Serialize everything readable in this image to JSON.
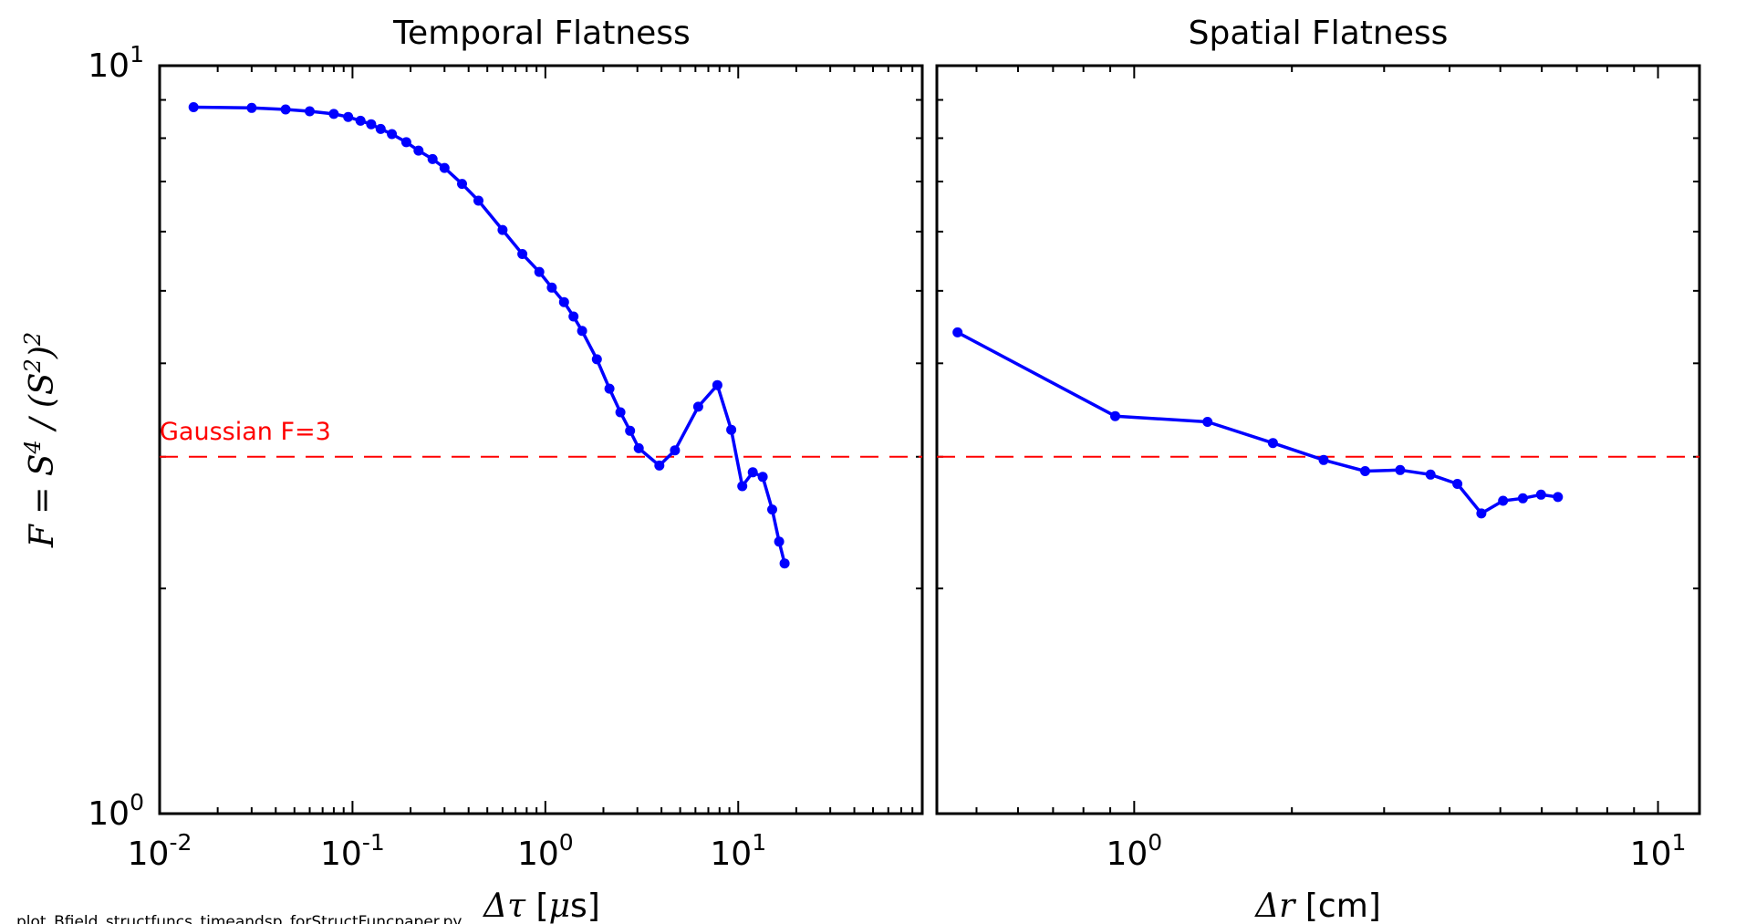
{
  "footer_filename": "plot_Bfield_structfuncs_timeandsp_forStructFuncpaper.py",
  "colors": {
    "series": "#0000ff",
    "reference": "#ff0000",
    "axes": "#000000"
  },
  "y_axis": {
    "label": "F = S^4 / (S^2)^2",
    "scale": "log",
    "range": [
      1,
      10
    ],
    "tick_labels": [
      {
        "base": "10",
        "exp": "0"
      },
      {
        "base": "10",
        "exp": "1"
      }
    ]
  },
  "reference_line": {
    "value": 3,
    "label": "Gaussian F=3",
    "style": "dashed"
  },
  "chart_data": [
    {
      "type": "line",
      "title": "Temporal Flatness",
      "xlabel": "Δτ [μs]",
      "xscale": "log",
      "xlim": [
        0.01,
        90
      ],
      "yscale": "log",
      "ylim": [
        1,
        10
      ],
      "x_tick_labels": [
        {
          "base": "10",
          "exp": "-2",
          "value": 0.01
        },
        {
          "base": "10",
          "exp": "-1",
          "value": 0.1
        },
        {
          "base": "10",
          "exp": "0",
          "value": 1
        },
        {
          "base": "10",
          "exp": "1",
          "value": 10
        }
      ],
      "series": [
        {
          "x": [
            0.015,
            0.03,
            0.045,
            0.06,
            0.08,
            0.095,
            0.11,
            0.125,
            0.14,
            0.16,
            0.19,
            0.22,
            0.26,
            0.3,
            0.37,
            0.45,
            0.6,
            0.76,
            0.93,
            1.08,
            1.25,
            1.4,
            1.55,
            1.85,
            2.15,
            2.45,
            2.75,
            3.05,
            3.9,
            4.7,
            6.2,
            7.8,
            9.2,
            10.5,
            11.9,
            13.4,
            15.0,
            16.3,
            17.4
          ],
          "y": [
            8.8,
            8.78,
            8.74,
            8.69,
            8.62,
            8.54,
            8.44,
            8.35,
            8.23,
            8.1,
            7.9,
            7.7,
            7.5,
            7.3,
            6.95,
            6.6,
            6.03,
            5.6,
            5.3,
            5.05,
            4.83,
            4.62,
            4.42,
            4.05,
            3.7,
            3.44,
            3.25,
            3.08,
            2.92,
            3.06,
            3.5,
            3.74,
            3.26,
            2.74,
            2.86,
            2.82,
            2.55,
            2.31,
            2.16
          ]
        }
      ]
    },
    {
      "type": "line",
      "title": "Spatial Flatness",
      "xlabel": "Δr [cm]",
      "xscale": "log",
      "xlim": [
        0.42,
        12
      ],
      "yscale": "log",
      "ylim": [
        1,
        10
      ],
      "x_tick_labels": [
        {
          "base": "10",
          "exp": "0",
          "value": 1
        },
        {
          "base": "10",
          "exp": "1",
          "value": 10
        }
      ],
      "series": [
        {
          "x": [
            0.46,
            0.92,
            1.38,
            1.84,
            2.3,
            2.76,
            3.22,
            3.68,
            4.14,
            4.6,
            5.06,
            5.52,
            5.98,
            6.44
          ],
          "y": [
            4.4,
            3.4,
            3.34,
            3.13,
            2.97,
            2.87,
            2.88,
            2.84,
            2.76,
            2.52,
            2.62,
            2.64,
            2.67,
            2.65
          ]
        }
      ]
    }
  ]
}
